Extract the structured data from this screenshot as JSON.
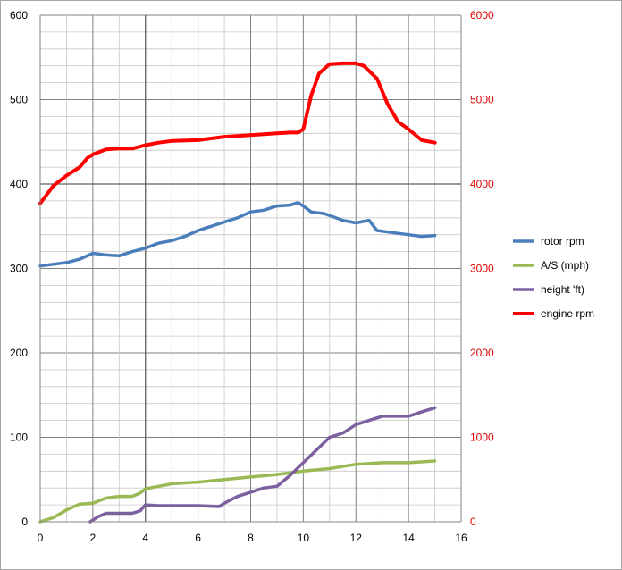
{
  "chart_data": {
    "type": "line",
    "title": "",
    "xlabel": "",
    "ylabel": "",
    "y2label": "",
    "grid": true,
    "legend_position": "right",
    "xlim": [
      0,
      16
    ],
    "ylim": [
      0,
      600
    ],
    "y2lim": [
      0,
      6000
    ],
    "x_ticks": [
      "0",
      "2",
      "4",
      "6",
      "8",
      "10",
      "12",
      "14",
      "16"
    ],
    "y_ticks": [
      "0",
      "100",
      "200",
      "300",
      "400",
      "500",
      "600"
    ],
    "y2_ticks": [
      "0",
      "1000",
      "2000",
      "3000",
      "4000",
      "5000",
      "6000"
    ],
    "series": [
      {
        "name": "rotor rpm",
        "axis": "left",
        "color": "#4a7ebb",
        "points": [
          [
            0,
            303
          ],
          [
            0.5,
            305
          ],
          [
            1,
            307
          ],
          [
            1.5,
            311
          ],
          [
            2,
            318
          ],
          [
            2.5,
            316
          ],
          [
            3,
            315
          ],
          [
            3.5,
            320
          ],
          [
            4,
            324
          ],
          [
            4.5,
            330
          ],
          [
            5,
            333
          ],
          [
            5.5,
            338
          ],
          [
            6,
            345
          ],
          [
            6.5,
            350
          ],
          [
            7,
            355
          ],
          [
            7.5,
            360
          ],
          [
            8,
            367
          ],
          [
            8.5,
            369
          ],
          [
            9,
            374
          ],
          [
            9.5,
            375
          ],
          [
            9.8,
            378
          ],
          [
            10,
            374
          ],
          [
            10.3,
            367
          ],
          [
            10.8,
            365
          ],
          [
            11.5,
            357
          ],
          [
            12,
            354
          ],
          [
            12.5,
            357
          ],
          [
            12.8,
            345
          ],
          [
            13.5,
            342
          ],
          [
            14,
            340
          ],
          [
            14.5,
            338
          ],
          [
            15,
            339
          ]
        ]
      },
      {
        "name": "A/S (mph)",
        "axis": "left",
        "color": "#98b954",
        "points": [
          [
            0,
            0
          ],
          [
            0.5,
            5
          ],
          [
            1,
            14
          ],
          [
            1.5,
            21
          ],
          [
            2,
            22
          ],
          [
            2.5,
            28
          ],
          [
            3,
            30
          ],
          [
            3.5,
            30
          ],
          [
            3.8,
            34
          ],
          [
            4,
            39
          ],
          [
            4.5,
            42
          ],
          [
            5,
            45
          ],
          [
            5.5,
            46
          ],
          [
            6,
            47
          ],
          [
            7,
            50
          ],
          [
            8,
            53
          ],
          [
            9,
            56
          ],
          [
            10,
            60
          ],
          [
            11,
            63
          ],
          [
            12,
            68
          ],
          [
            13,
            70
          ],
          [
            14,
            70
          ],
          [
            15,
            72
          ]
        ]
      },
      {
        "name": "height 'ft)",
        "axis": "left",
        "color": "#7d60a0",
        "points": [
          [
            1.9,
            0
          ],
          [
            2.2,
            6
          ],
          [
            2.5,
            10
          ],
          [
            3,
            10
          ],
          [
            3.5,
            10
          ],
          [
            3.8,
            13
          ],
          [
            4,
            20
          ],
          [
            4.5,
            19
          ],
          [
            5,
            19
          ],
          [
            6,
            19
          ],
          [
            6.8,
            18
          ],
          [
            7,
            22
          ],
          [
            7.5,
            30
          ],
          [
            8,
            35
          ],
          [
            8.5,
            40
          ],
          [
            9,
            42
          ],
          [
            9.5,
            55
          ],
          [
            10,
            70
          ],
          [
            10.5,
            85
          ],
          [
            11,
            100
          ],
          [
            11.5,
            105
          ],
          [
            12,
            115
          ],
          [
            12.5,
            120
          ],
          [
            13,
            125
          ],
          [
            13.5,
            125
          ],
          [
            14,
            125
          ],
          [
            14.5,
            130
          ],
          [
            15,
            135
          ]
        ]
      },
      {
        "name": "engine rpm",
        "axis": "right",
        "color": "#ff0000",
        "points": [
          [
            0,
            3770
          ],
          [
            0.5,
            3980
          ],
          [
            1,
            4100
          ],
          [
            1.5,
            4200
          ],
          [
            1.8,
            4310
          ],
          [
            2,
            4350
          ],
          [
            2.5,
            4410
          ],
          [
            3,
            4420
          ],
          [
            3.5,
            4420
          ],
          [
            4,
            4460
          ],
          [
            4.5,
            4490
          ],
          [
            5,
            4510
          ],
          [
            6,
            4520
          ],
          [
            7,
            4560
          ],
          [
            8,
            4580
          ],
          [
            9,
            4600
          ],
          [
            9.5,
            4610
          ],
          [
            9.8,
            4610
          ],
          [
            10,
            4650
          ],
          [
            10.3,
            5050
          ],
          [
            10.6,
            5310
          ],
          [
            11,
            5420
          ],
          [
            11.5,
            5430
          ],
          [
            12,
            5430
          ],
          [
            12.3,
            5400
          ],
          [
            12.8,
            5250
          ],
          [
            13.2,
            4950
          ],
          [
            13.6,
            4740
          ],
          [
            14,
            4650
          ],
          [
            14.5,
            4520
          ],
          [
            15,
            4490
          ]
        ]
      }
    ]
  }
}
